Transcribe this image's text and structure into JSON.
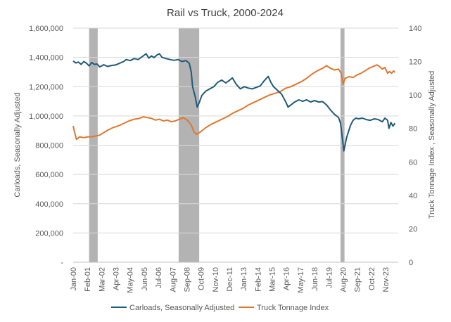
{
  "chart_data": {
    "type": "line",
    "title": "Rail vs Truck, 2000-2024",
    "ylabel_left": "Carloads, Seasonally Adjusted",
    "ylabel_right": "Truck Tonnage Index , Seasonally Adjusted",
    "ylim_left": [
      0,
      1600000
    ],
    "ylim_right": [
      0,
      140
    ],
    "left_tick_labels": [
      "-",
      "200,000",
      "400,000",
      "600,000",
      "800,000",
      "1,000,000",
      "1,200,000",
      "1,400,000",
      "1,600,000"
    ],
    "right_tick_labels": [
      "0",
      "20",
      "40",
      "60",
      "80",
      "100",
      "120",
      "140"
    ],
    "x_tick_labels": [
      "Jan-00",
      "Feb-01",
      "Mar-02",
      "Apr-03",
      "May-04",
      "Jun-05",
      "Jul-06",
      "Aug-07",
      "Sep-08",
      "Oct-09",
      "Nov-10",
      "Dec-11",
      "Jan-13",
      "Feb-14",
      "Mar-15",
      "Apr-16",
      "May-17",
      "Jun-18",
      "Jul-19",
      "Aug-20",
      "Sep-21",
      "Oct-22",
      "Nov-23"
    ],
    "grid": "horizontal",
    "legend_position": "bottom",
    "recessions": [
      [
        2001.2,
        2001.85
      ],
      [
        2007.95,
        2009.5
      ],
      [
        2020.15,
        2020.45
      ]
    ],
    "series": [
      {
        "name": "Carloads, Seasonally Adjusted",
        "axis": "left",
        "color": "#1f5a7a",
        "points": [
          [
            2000.0,
            1375000
          ],
          [
            2000.2,
            1362000
          ],
          [
            2000.4,
            1368000
          ],
          [
            2000.6,
            1352000
          ],
          [
            2000.8,
            1372000
          ],
          [
            2001.0,
            1360000
          ],
          [
            2001.2,
            1342000
          ],
          [
            2001.4,
            1365000
          ],
          [
            2001.6,
            1352000
          ],
          [
            2001.8,
            1355000
          ],
          [
            2002.0,
            1335000
          ],
          [
            2002.3,
            1350000
          ],
          [
            2002.6,
            1338000
          ],
          [
            2002.9,
            1345000
          ],
          [
            2003.2,
            1348000
          ],
          [
            2003.5,
            1360000
          ],
          [
            2003.8,
            1372000
          ],
          [
            2004.0,
            1385000
          ],
          [
            2004.3,
            1378000
          ],
          [
            2004.6,
            1392000
          ],
          [
            2004.9,
            1385000
          ],
          [
            2005.2,
            1405000
          ],
          [
            2005.5,
            1425000
          ],
          [
            2005.7,
            1395000
          ],
          [
            2005.9,
            1410000
          ],
          [
            2006.1,
            1398000
          ],
          [
            2006.3,
            1415000
          ],
          [
            2006.5,
            1425000
          ],
          [
            2006.7,
            1400000
          ],
          [
            2007.0,
            1392000
          ],
          [
            2007.3,
            1385000
          ],
          [
            2007.6,
            1380000
          ],
          [
            2007.9,
            1385000
          ],
          [
            2008.2,
            1372000
          ],
          [
            2008.5,
            1378000
          ],
          [
            2008.75,
            1360000
          ],
          [
            2008.9,
            1300000
          ],
          [
            2009.0,
            1200000
          ],
          [
            2009.2,
            1130000
          ],
          [
            2009.35,
            1060000
          ],
          [
            2009.5,
            1090000
          ],
          [
            2009.7,
            1140000
          ],
          [
            2010.0,
            1170000
          ],
          [
            2010.3,
            1185000
          ],
          [
            2010.6,
            1200000
          ],
          [
            2010.9,
            1230000
          ],
          [
            2011.2,
            1245000
          ],
          [
            2011.5,
            1225000
          ],
          [
            2011.8,
            1245000
          ],
          [
            2012.0,
            1260000
          ],
          [
            2012.3,
            1215000
          ],
          [
            2012.6,
            1185000
          ],
          [
            2012.9,
            1200000
          ],
          [
            2013.2,
            1190000
          ],
          [
            2013.5,
            1185000
          ],
          [
            2013.8,
            1195000
          ],
          [
            2014.1,
            1205000
          ],
          [
            2014.4,
            1240000
          ],
          [
            2014.7,
            1270000
          ],
          [
            2014.9,
            1230000
          ],
          [
            2015.1,
            1200000
          ],
          [
            2015.4,
            1175000
          ],
          [
            2015.7,
            1150000
          ],
          [
            2016.0,
            1100000
          ],
          [
            2016.2,
            1060000
          ],
          [
            2016.4,
            1075000
          ],
          [
            2016.7,
            1095000
          ],
          [
            2017.0,
            1110000
          ],
          [
            2017.3,
            1100000
          ],
          [
            2017.6,
            1110000
          ],
          [
            2017.9,
            1095000
          ],
          [
            2018.2,
            1105000
          ],
          [
            2018.5,
            1095000
          ],
          [
            2018.8,
            1098000
          ],
          [
            2019.1,
            1075000
          ],
          [
            2019.4,
            1040000
          ],
          [
            2019.7,
            1010000
          ],
          [
            2020.0,
            990000
          ],
          [
            2020.15,
            950000
          ],
          [
            2020.3,
            840000
          ],
          [
            2020.4,
            760000
          ],
          [
            2020.6,
            850000
          ],
          [
            2020.9,
            935000
          ],
          [
            2021.1,
            970000
          ],
          [
            2021.3,
            985000
          ],
          [
            2021.5,
            980000
          ],
          [
            2021.8,
            985000
          ],
          [
            2022.1,
            975000
          ],
          [
            2022.4,
            970000
          ],
          [
            2022.7,
            980000
          ],
          [
            2023.0,
            975000
          ],
          [
            2023.3,
            960000
          ],
          [
            2023.5,
            985000
          ],
          [
            2023.7,
            970000
          ],
          [
            2023.8,
            915000
          ],
          [
            2023.95,
            955000
          ],
          [
            2024.1,
            930000
          ],
          [
            2024.25,
            950000
          ]
        ]
      },
      {
        "name": "Truck Tonnage Index",
        "axis": "right",
        "color": "#e0772f",
        "points": [
          [
            2000.0,
            81.5
          ],
          [
            2000.1,
            78.0
          ],
          [
            2000.25,
            73.5
          ],
          [
            2000.5,
            75.0
          ],
          [
            2000.8,
            74.5
          ],
          [
            2001.1,
            75.0
          ],
          [
            2001.4,
            75.0
          ],
          [
            2001.7,
            75.5
          ],
          [
            2002.0,
            76.0
          ],
          [
            2002.3,
            77.5
          ],
          [
            2002.6,
            79.0
          ],
          [
            2003.0,
            80.5
          ],
          [
            2003.4,
            81.5
          ],
          [
            2003.8,
            83.0
          ],
          [
            2004.2,
            84.5
          ],
          [
            2004.6,
            85.5
          ],
          [
            2005.0,
            86.0
          ],
          [
            2005.3,
            87.0
          ],
          [
            2005.6,
            86.5
          ],
          [
            2005.9,
            86.0
          ],
          [
            2006.2,
            85.0
          ],
          [
            2006.5,
            85.5
          ],
          [
            2006.8,
            84.5
          ],
          [
            2007.1,
            85.0
          ],
          [
            2007.4,
            84.0
          ],
          [
            2007.7,
            84.5
          ],
          [
            2008.0,
            85.5
          ],
          [
            2008.3,
            86.5
          ],
          [
            2008.6,
            85.0
          ],
          [
            2008.9,
            82.0
          ],
          [
            2009.1,
            78.0
          ],
          [
            2009.3,
            76.5
          ],
          [
            2009.6,
            78.0
          ],
          [
            2010.0,
            80.5
          ],
          [
            2010.4,
            82.5
          ],
          [
            2010.8,
            84.0
          ],
          [
            2011.2,
            85.5
          ],
          [
            2011.6,
            87.0
          ],
          [
            2012.0,
            89.0
          ],
          [
            2012.4,
            90.5
          ],
          [
            2012.8,
            92.0
          ],
          [
            2013.2,
            94.0
          ],
          [
            2013.6,
            95.5
          ],
          [
            2014.0,
            97.0
          ],
          [
            2014.4,
            98.5
          ],
          [
            2014.8,
            100.0
          ],
          [
            2015.2,
            101.0
          ],
          [
            2015.6,
            102.0
          ],
          [
            2016.0,
            104.0
          ],
          [
            2016.4,
            105.0
          ],
          [
            2016.8,
            106.5
          ],
          [
            2017.2,
            108.0
          ],
          [
            2017.6,
            110.0
          ],
          [
            2018.0,
            112.5
          ],
          [
            2018.4,
            114.5
          ],
          [
            2018.8,
            116.0
          ],
          [
            2019.1,
            117.5
          ],
          [
            2019.4,
            116.0
          ],
          [
            2019.7,
            115.0
          ],
          [
            2020.0,
            115.5
          ],
          [
            2020.2,
            113.0
          ],
          [
            2020.35,
            106.5
          ],
          [
            2020.5,
            110.0
          ],
          [
            2020.8,
            111.0
          ],
          [
            2021.1,
            110.5
          ],
          [
            2021.4,
            112.0
          ],
          [
            2021.7,
            113.0
          ],
          [
            2022.0,
            114.5
          ],
          [
            2022.3,
            116.0
          ],
          [
            2022.6,
            117.0
          ],
          [
            2022.9,
            118.0
          ],
          [
            2023.1,
            117.0
          ],
          [
            2023.3,
            115.5
          ],
          [
            2023.5,
            116.5
          ],
          [
            2023.7,
            113.0
          ],
          [
            2023.85,
            114.0
          ],
          [
            2024.0,
            113.0
          ],
          [
            2024.15,
            114.5
          ],
          [
            2024.25,
            113.5
          ]
        ]
      }
    ]
  }
}
